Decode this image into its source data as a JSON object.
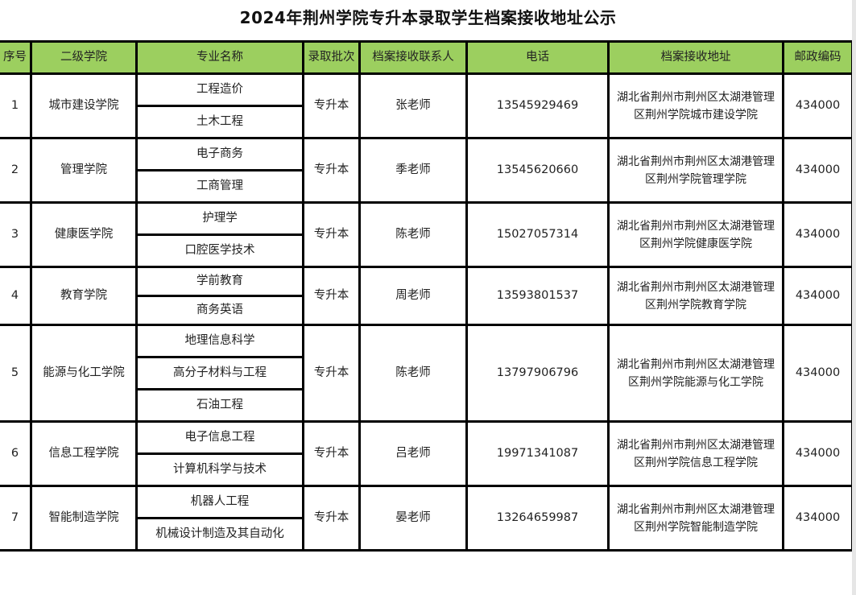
{
  "title": "2024年荆州学院专升本录取学生档案接收地址公示",
  "colors": {
    "header_bg": "#9ccf5f",
    "border": "#000000"
  },
  "columns": [
    "序号",
    "二级学院",
    "专业名称",
    "录取批次",
    "档案接收联系人",
    "电话",
    "档案接收地址",
    "邮政编码"
  ],
  "rows": [
    {
      "no": "1",
      "college": "城市建设学院",
      "majors": [
        "工程造价",
        "土木工程"
      ],
      "batch": "专升本",
      "contact": "张老师",
      "phone": "13545929469",
      "address": "湖北省荆州市荆州区太湖港管理区荆州学院城市建设学院",
      "postcode": "434000"
    },
    {
      "no": "2",
      "college": "管理学院",
      "majors": [
        "电子商务",
        "工商管理"
      ],
      "batch": "专升本",
      "contact": "季老师",
      "phone": "13545620660",
      "address": "湖北省荆州市荆州区太湖港管理区荆州学院管理学院",
      "postcode": "434000"
    },
    {
      "no": "3",
      "college": "健康医学院",
      "majors": [
        "护理学",
        "口腔医学技术"
      ],
      "batch": "专升本",
      "contact": "陈老师",
      "phone": "15027057314",
      "address": "湖北省荆州市荆州区太湖港管理区荆州学院健康医学院",
      "postcode": "434000"
    },
    {
      "no": "4",
      "college": "教育学院",
      "majors": [
        "学前教育",
        "商务英语"
      ],
      "batch": "专升本",
      "contact": "周老师",
      "phone": "13593801537",
      "address": "湖北省荆州市荆州区太湖港管理区荆州学院教育学院",
      "postcode": "434000"
    },
    {
      "no": "5",
      "college": "能源与化工学院",
      "majors": [
        "地理信息科学",
        "高分子材料与工程",
        "石油工程"
      ],
      "batch": "专升本",
      "contact": "陈老师",
      "phone": "13797906796",
      "address": "湖北省荆州市荆州区太湖港管理区荆州学院能源与化工学院",
      "postcode": "434000"
    },
    {
      "no": "6",
      "college": "信息工程学院",
      "majors": [
        "电子信息工程",
        "计算机科学与技术"
      ],
      "batch": "专升本",
      "contact": "吕老师",
      "phone": "19971341087",
      "address": "湖北省荆州市荆州区太湖港管理区荆州学院信息工程学院",
      "postcode": "434000"
    },
    {
      "no": "7",
      "college": "智能制造学院",
      "majors": [
        "机器人工程",
        "机械设计制造及其自动化"
      ],
      "batch": "专升本",
      "contact": "晏老师",
      "phone": "13264659987",
      "address": "湖北省荆州市荆州区太湖港管理区荆州学院智能制造学院",
      "postcode": "434000"
    }
  ]
}
